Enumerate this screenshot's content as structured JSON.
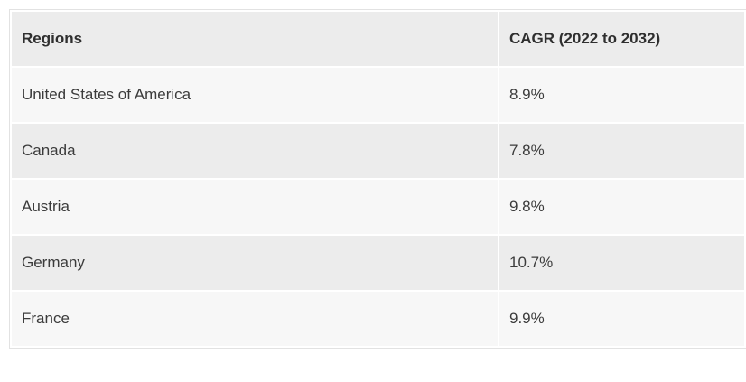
{
  "table": {
    "columns": [
      {
        "key": "region",
        "label": "Regions"
      },
      {
        "key": "cagr",
        "label": "CAGR (2022 to 2032)"
      }
    ],
    "rows": [
      {
        "region": "United States of America",
        "cagr": "8.9%"
      },
      {
        "region": "Canada",
        "cagr": "7.8%"
      },
      {
        "region": "Austria",
        "cagr": "9.8%"
      },
      {
        "region": "Germany",
        "cagr": "10.7%"
      },
      {
        "region": "France",
        "cagr": "9.9%"
      }
    ],
    "colors": {
      "header_bg": "#ececec",
      "row_odd_bg": "#f7f7f7",
      "row_even_bg": "#ececec",
      "outer_border": "#e2e2e2",
      "cell_gap": "#ffffff",
      "header_text": "#2f2f2f",
      "body_text": "#3b3b3b",
      "page_bg": "#ffffff"
    }
  },
  "chart_data": {
    "type": "table",
    "title": "",
    "columns": [
      "Regions",
      "CAGR (2022 to 2032)"
    ],
    "rows": [
      [
        "United States of America",
        "8.9%"
      ],
      [
        "Canada",
        "7.8%"
      ],
      [
        "Austria",
        "9.8%"
      ],
      [
        "Germany",
        "10.7%"
      ],
      [
        "France",
        "9.9%"
      ]
    ],
    "values_numeric_percent": {
      "United States of America": 8.9,
      "Canada": 7.8,
      "Austria": 9.8,
      "Germany": 10.7,
      "France": 9.9
    },
    "layout": {
      "grid": "cell-gaps-white",
      "header_row": true,
      "zebra_striping": true
    }
  }
}
